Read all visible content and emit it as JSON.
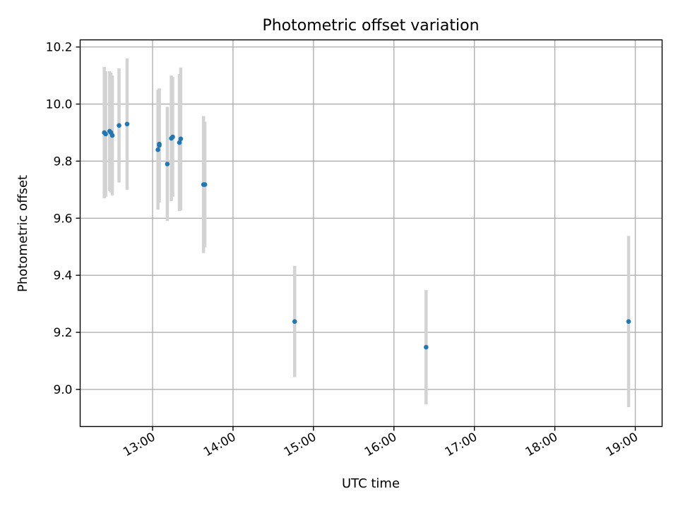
{
  "chart_data": {
    "type": "scatter",
    "title": "Photometric offset variation",
    "xlabel": "UTC time",
    "ylabel": "Photometric offset",
    "x_ticks": [
      "13:00",
      "14:00",
      "15:00",
      "16:00",
      "17:00",
      "18:00",
      "19:00"
    ],
    "y_ticks": [
      "9.0",
      "9.2",
      "9.4",
      "9.6",
      "9.8",
      "10.0",
      "10.2"
    ],
    "xlim": [
      "12:06",
      "19:20"
    ],
    "ylim": [
      8.87,
      10.225
    ],
    "grid": true,
    "marker_color": "#1f77b4",
    "errorbar_color": "#d3d3d3",
    "points": [
      {
        "x": "12:24",
        "y": 9.9,
        "err": 0.23
      },
      {
        "x": "12:25",
        "y": 9.895,
        "err": 0.22
      },
      {
        "x": "12:28",
        "y": 9.905,
        "err": 0.21
      },
      {
        "x": "12:29",
        "y": 9.9,
        "err": 0.21
      },
      {
        "x": "12:30",
        "y": 9.89,
        "err": 0.21
      },
      {
        "x": "12:35",
        "y": 9.925,
        "err": 0.2
      },
      {
        "x": "12:41",
        "y": 9.93,
        "err": 0.23
      },
      {
        "x": "13:04",
        "y": 9.84,
        "err": 0.21
      },
      {
        "x": "13:05",
        "y": 9.855,
        "err": 0.2
      },
      {
        "x": "13:05",
        "y": 9.86,
        "err": 0.19
      },
      {
        "x": "13:11",
        "y": 9.79,
        "err": 0.2
      },
      {
        "x": "13:14",
        "y": 9.88,
        "err": 0.22
      },
      {
        "x": "13:15",
        "y": 9.885,
        "err": 0.21
      },
      {
        "x": "13:20",
        "y": 9.865,
        "err": 0.24
      },
      {
        "x": "13:21",
        "y": 9.878,
        "err": 0.25
      },
      {
        "x": "13:38",
        "y": 9.718,
        "err": 0.24
      },
      {
        "x": "13:39",
        "y": 9.718,
        "err": 0.22
      },
      {
        "x": "14:46",
        "y": 9.238,
        "err": 0.195
      },
      {
        "x": "16:24",
        "y": 9.148,
        "err": 0.2
      },
      {
        "x": "18:55",
        "y": 9.238,
        "err": 0.3
      }
    ]
  }
}
